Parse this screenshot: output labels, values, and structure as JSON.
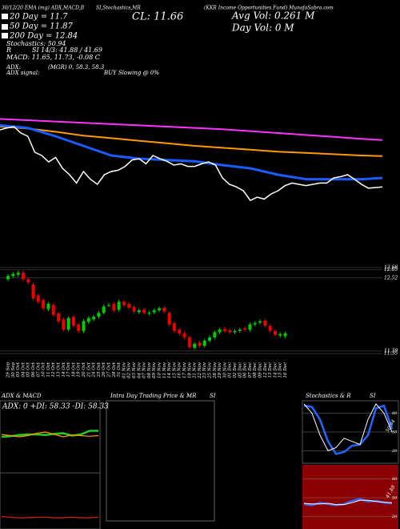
{
  "chart_data": [
    {
      "type": "candlestick",
      "annotations": [
        "30/12/20 EMA (mg) ADX,MACD,B",
        "SI,Stochastics,MR",
        "(KKR Income Opportunities Fund) MunafaSabra.com",
        "CL: 11.66",
        "Avg Vol: 0.261 M",
        "Day Vol: 0 M",
        "20 Day = 11.7",
        "50 Day = 11.87",
        "200 Day = 12.84",
        "Stochastics: 50.94",
        "R",
        "SI 14/3: 41.88 / 41.69",
        "MACD: 11.65, 11.73, -0.08 C",
        "ADX:",
        "(MGR) 0, 58.3, 58.3",
        "ADX signal:",
        "BUY Slowing @ 0%"
      ],
      "categories": [
        "29 Sep",
        "30 Sep",
        "03 Oct",
        "04 Oct",
        "05 Oct",
        "06 Oct",
        "07 Oct",
        "10 Oct",
        "11 Oct",
        "12 Oct",
        "13 Oct",
        "14 Oct",
        "17 Oct",
        "18 Oct",
        "19 Oct",
        "20 Oct",
        "21 Oct",
        "24 Oct",
        "25 Oct",
        "26 Oct",
        "27 Oct",
        "28 Oct",
        "31 Oct",
        "01 Nov",
        "02 Nov",
        "03 Nov",
        "04 Nov",
        "07 Nov",
        "08 Nov",
        "09 Nov",
        "10 Nov",
        "11 Nov",
        "14 Nov",
        "15 Nov",
        "16 Nov",
        "17 Nov",
        "18 Nov",
        "21 Nov",
        "22 Nov",
        "23 Nov",
        "25 Nov",
        "28 Nov",
        "29 Nov",
        "30 Nov",
        "01 Dec",
        "02 Dec",
        "05 Dec",
        "06 Dec",
        "07 Dec",
        "08 Dec",
        "09 Dec",
        "12 Dec",
        "13 Dec",
        "14 Dec",
        "15 Dec",
        "16 Dec"
      ],
      "open": [
        12.5,
        12.55,
        12.57,
        12.6,
        12.5,
        12.42,
        12.25,
        12.18,
        12.04,
        12.1,
        11.97,
        11.88,
        11.72,
        11.92,
        11.8,
        11.7,
        11.84,
        11.88,
        11.92,
        11.98,
        12.1,
        12.12,
        12.03,
        12.15,
        12.12,
        12.07,
        11.99,
        12.03,
        11.97,
        11.99,
        12.02,
        12.06,
        11.98,
        11.82,
        11.72,
        11.66,
        11.6,
        11.44,
        11.52,
        11.47,
        11.55,
        11.6,
        11.68,
        11.73,
        11.71,
        11.68,
        11.7,
        11.74,
        11.72,
        11.8,
        11.83,
        11.86,
        11.78,
        11.7,
        11.63,
        11.62
      ],
      "high": [
        12.58,
        12.61,
        12.63,
        12.63,
        12.53,
        12.45,
        12.28,
        12.21,
        12.15,
        12.13,
        12.0,
        11.91,
        11.93,
        11.95,
        11.83,
        11.88,
        11.93,
        11.95,
        12.01,
        12.11,
        12.13,
        12.15,
        12.18,
        12.18,
        12.15,
        12.1,
        12.05,
        12.06,
        12.01,
        12.05,
        12.08,
        12.09,
        12.01,
        11.85,
        11.75,
        11.69,
        11.63,
        11.53,
        11.55,
        11.58,
        11.63,
        11.71,
        11.75,
        11.76,
        11.74,
        11.73,
        11.75,
        11.77,
        11.83,
        11.85,
        11.88,
        11.89,
        11.81,
        11.73,
        11.68,
        11.69
      ],
      "low": [
        12.47,
        12.52,
        12.54,
        12.47,
        12.42,
        12.17,
        12.12,
        12.02,
        12.01,
        11.92,
        11.82,
        11.69,
        11.69,
        11.75,
        11.67,
        11.67,
        11.81,
        11.85,
        11.89,
        11.95,
        12.07,
        11.99,
        12.0,
        12.07,
        12.03,
        11.97,
        11.96,
        11.95,
        11.94,
        11.96,
        11.99,
        11.97,
        11.77,
        11.67,
        11.63,
        11.57,
        11.42,
        11.41,
        11.44,
        11.44,
        11.52,
        11.57,
        11.65,
        11.67,
        11.65,
        11.65,
        11.67,
        11.69,
        11.69,
        11.77,
        11.8,
        11.75,
        11.67,
        11.61,
        11.6,
        11.59
      ],
      "close": [
        12.55,
        12.58,
        12.6,
        12.5,
        12.45,
        12.2,
        12.15,
        12.05,
        12.12,
        11.95,
        11.85,
        11.72,
        11.9,
        11.78,
        11.7,
        11.85,
        11.9,
        11.92,
        11.98,
        12.08,
        12.1,
        12.02,
        12.15,
        12.1,
        12.06,
        12.0,
        12.02,
        11.98,
        11.98,
        12.02,
        12.05,
        12.0,
        11.8,
        11.7,
        11.66,
        11.6,
        11.45,
        11.5,
        11.47,
        11.55,
        11.6,
        11.68,
        11.72,
        11.7,
        11.68,
        11.7,
        11.72,
        11.72,
        11.8,
        11.82,
        11.85,
        11.78,
        11.7,
        11.64,
        11.65,
        11.66
      ],
      "up_color": "#00cc00",
      "down_color": "#ee0000",
      "ylim": [
        11.24,
        12.79
      ],
      "yticks": [
        12.68,
        12.65,
        12.52,
        11.39,
        11.35
      ],
      "series": [
        {
          "color": "#ff33ff",
          "x": [
            0,
            4,
            8,
            12,
            16,
            20,
            24,
            28,
            32,
            36,
            40,
            44,
            48,
            52,
            55
          ],
          "values": [
            12.72,
            12.7,
            12.68,
            12.66,
            12.64,
            12.62,
            12.6,
            12.58,
            12.56,
            12.53,
            12.5,
            12.47,
            12.44,
            12.41,
            12.39
          ]
        },
        {
          "color": "#ff9900",
          "x": [
            0,
            4,
            8,
            12,
            16,
            20,
            24,
            28,
            32,
            36,
            40,
            44,
            48,
            52,
            55
          ],
          "values": [
            12.6,
            12.57,
            12.52,
            12.46,
            12.42,
            12.38,
            12.34,
            12.3,
            12.27,
            12.24,
            12.21,
            12.19,
            12.17,
            12.15,
            12.14
          ]
        },
        {
          "color": "#1a5cff",
          "x": [
            0,
            4,
            8,
            12,
            16,
            20,
            24,
            28,
            32,
            36,
            40,
            44,
            48,
            52,
            55
          ],
          "values": [
            12.62,
            12.58,
            12.45,
            12.3,
            12.15,
            12.1,
            12.08,
            12.06,
            12.0,
            11.95,
            11.85,
            11.78,
            11.78,
            11.78,
            11.8
          ]
        }
      ]
    },
    {
      "type": "line",
      "title": "ADX  & MACD",
      "subtitle": "ADX: 0  +DI: 58.33  -DI: 58.33",
      "series": [
        {
          "color": "#22cc22",
          "x": [
            0,
            1,
            2,
            3,
            4,
            5,
            6,
            7,
            8,
            9,
            10,
            11
          ],
          "values": [
            60,
            61,
            63,
            64,
            64,
            63,
            65,
            66,
            62,
            64,
            70,
            70
          ]
        },
        {
          "color": "#ff9900",
          "x": [
            0,
            1,
            2,
            3,
            4,
            5,
            6,
            7,
            8,
            9,
            10,
            11
          ],
          "values": [
            64,
            62,
            60,
            62,
            66,
            68,
            64,
            60,
            63,
            62,
            61,
            62
          ]
        },
        {
          "color": "#dd2200",
          "x": [
            0,
            1,
            2,
            3,
            4,
            5,
            6,
            7,
            8,
            9,
            10,
            11
          ],
          "values": [
            22,
            21,
            20,
            20,
            21,
            21,
            20,
            20,
            21,
            20,
            20,
            21
          ]
        }
      ]
    },
    {
      "type": "box",
      "title": "Intra Day Trading Price  & MR",
      "subtitle": "SI"
    },
    {
      "type": "line",
      "title": "Stochastics & R",
      "subtitle": "SI",
      "value_label": "50.94",
      "ylim": [
        0,
        100
      ],
      "yticks": [
        80,
        50,
        20
      ],
      "series": [
        {
          "color": "#2266ff",
          "x": [
            0,
            1,
            2,
            3,
            4,
            5,
            6,
            7,
            8,
            9,
            10,
            11
          ],
          "values": [
            92,
            90,
            70,
            35,
            15,
            18,
            28,
            30,
            45,
            88,
            92,
            55
          ]
        },
        {
          "color": "#ffffff",
          "x": [
            0,
            1,
            2,
            3,
            4,
            5,
            6,
            7,
            8,
            9,
            10,
            11
          ],
          "values": [
            95,
            80,
            45,
            20,
            25,
            40,
            35,
            30,
            70,
            95,
            80,
            50
          ]
        }
      ]
    },
    {
      "type": "line",
      "ylim": [
        0,
        100
      ],
      "yticks": [
        80,
        50,
        20
      ],
      "value_label": "41.88",
      "series": [
        {
          "color": "#3366ff",
          "x": [
            0,
            1,
            2,
            3,
            4,
            5,
            6,
            7,
            8,
            9,
            10,
            11
          ],
          "values": [
            40,
            38,
            42,
            40,
            38,
            40,
            45,
            48,
            44,
            45,
            42,
            41
          ]
        },
        {
          "color": "#ffffff",
          "x": [
            0,
            1,
            2,
            3,
            4,
            5,
            6,
            7,
            8,
            9,
            10,
            11
          ],
          "values": [
            41,
            40,
            40,
            41,
            39,
            39,
            42,
            46,
            46,
            44,
            43,
            42
          ]
        }
      ]
    }
  ]
}
